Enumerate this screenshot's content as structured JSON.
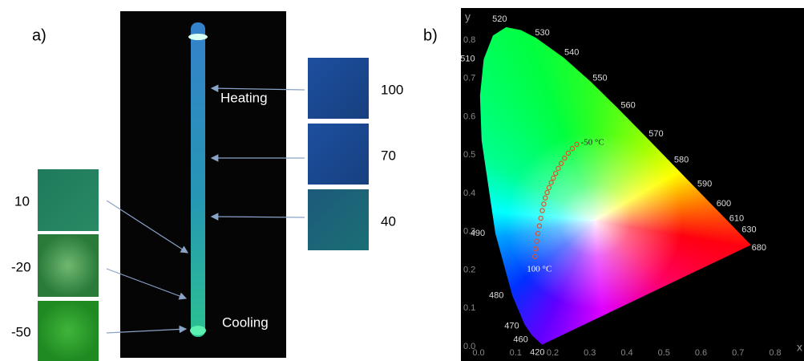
{
  "panel_a": {
    "label": "a)",
    "heating": "Heating",
    "cooling": "Cooling",
    "right_swatches": [
      "100",
      "70",
      "40"
    ],
    "left_swatches": [
      "10",
      "-20",
      "-50"
    ]
  },
  "panel_b": {
    "label": "b)",
    "chart_data": {
      "type": "scatter",
      "x_label": "x",
      "y_label": "y",
      "xlim": [
        0,
        0.8
      ],
      "ylim": [
        0,
        0.8
      ],
      "xticks": [
        {
          "value": 0,
          "label": "0.0"
        },
        {
          "value": 0.1,
          "label": "0.1"
        },
        {
          "value": 0.2,
          "label": "0.2"
        },
        {
          "value": 0.3,
          "label": "0.3"
        },
        {
          "value": 0.4,
          "label": "0.4"
        },
        {
          "value": 0.5,
          "label": "0.5"
        },
        {
          "value": 0.6,
          "label": "0.6"
        },
        {
          "value": 0.7,
          "label": "0.7"
        },
        {
          "value": 0.8,
          "label": "0.8"
        }
      ],
      "yticks": [
        {
          "value": 0,
          "label": "0.0"
        },
        {
          "value": 0.1,
          "label": "0.1"
        },
        {
          "value": 0.2,
          "label": "0.2"
        },
        {
          "value": 0.3,
          "label": "0.3"
        },
        {
          "value": 0.4,
          "label": "0.4"
        },
        {
          "value": 0.5,
          "label": "0.5"
        },
        {
          "value": 0.6,
          "label": "0.6"
        },
        {
          "value": 0.7,
          "label": "0.7"
        },
        {
          "value": 0.8,
          "label": "0.8"
        }
      ],
      "wavelengths": [
        420,
        460,
        470,
        480,
        490,
        510,
        520,
        530,
        540,
        550,
        560,
        570,
        580,
        590,
        600,
        610,
        630,
        680
      ],
      "annotations": [
        "-50 °C",
        "100 °C"
      ],
      "series": [
        {
          "color": "#e0502a",
          "x": [
            0.152,
            0.154,
            0.157,
            0.16,
            0.164,
            0.168,
            0.172,
            0.176,
            0.18,
            0.185,
            0.19,
            0.196,
            0.202,
            0.208,
            0.215,
            0.223,
            0.232,
            0.242,
            0.253,
            0.265
          ],
          "values": [
            0.235,
            0.255,
            0.275,
            0.295,
            0.315,
            0.335,
            0.355,
            0.372,
            0.388,
            0.402,
            0.415,
            0.428,
            0.44,
            0.452,
            0.465,
            0.478,
            0.492,
            0.505,
            0.517,
            0.528
          ]
        }
      ]
    }
  }
}
